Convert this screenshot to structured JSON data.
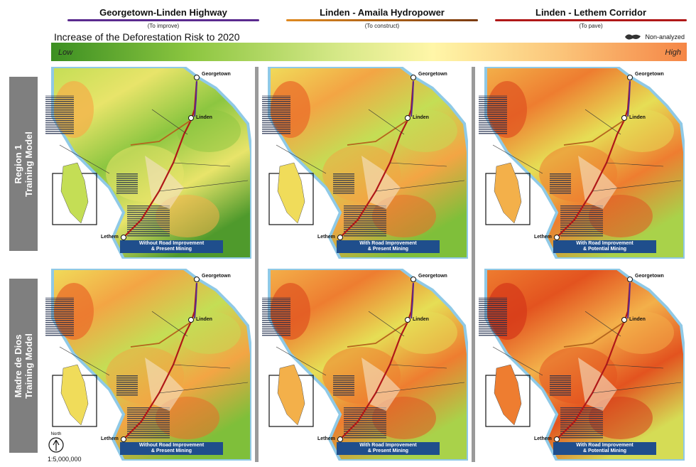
{
  "legend": [
    {
      "title": "Georgetown-Linden Highway",
      "sub": "(To improve)",
      "color": "#5a2a8e"
    },
    {
      "title": "Linden - Amaila Hydropower",
      "sub": "(To construct)",
      "color": "#b5651d"
    },
    {
      "title": "Linden - Lethem Corridor",
      "sub": "(To pave)",
      "color": "#b01818"
    }
  ],
  "main_title": "Increase of the Deforestation Risk to 2020",
  "non_analyzed": "Non-analyzed",
  "gradient": {
    "low": "Low",
    "high": "High"
  },
  "rows": [
    {
      "label": "Region 1\nTraining Model"
    },
    {
      "label": "Madre de Dios\nTraining Model"
    }
  ],
  "panels": [
    {
      "caption": "Without Road Improvement\n& Present Mining",
      "risk": "low"
    },
    {
      "caption": "With Road Improvement\n& Present Mining",
      "risk": "mid"
    },
    {
      "caption": "With Road Improvement\n& Potential Mining",
      "risk": "high"
    },
    {
      "caption": "Without Road Improvement\n& Present Mining",
      "risk": "mid"
    },
    {
      "caption": "With Road Improvement\n& Present Mining",
      "risk": "high"
    },
    {
      "caption": "With Road Improvement\n& Potential Mining",
      "risk": "vhigh"
    }
  ],
  "cities": {
    "georgetown": "Georgetown",
    "linden": "Linden",
    "lethem": "Lethem"
  },
  "north": "North",
  "scale": "1:5,000,000",
  "colors": {
    "low": "#3c8f22",
    "high": "#f58646",
    "caption_bg": "#1f4e8c",
    "row_label_bg": "#7f7f7f"
  }
}
